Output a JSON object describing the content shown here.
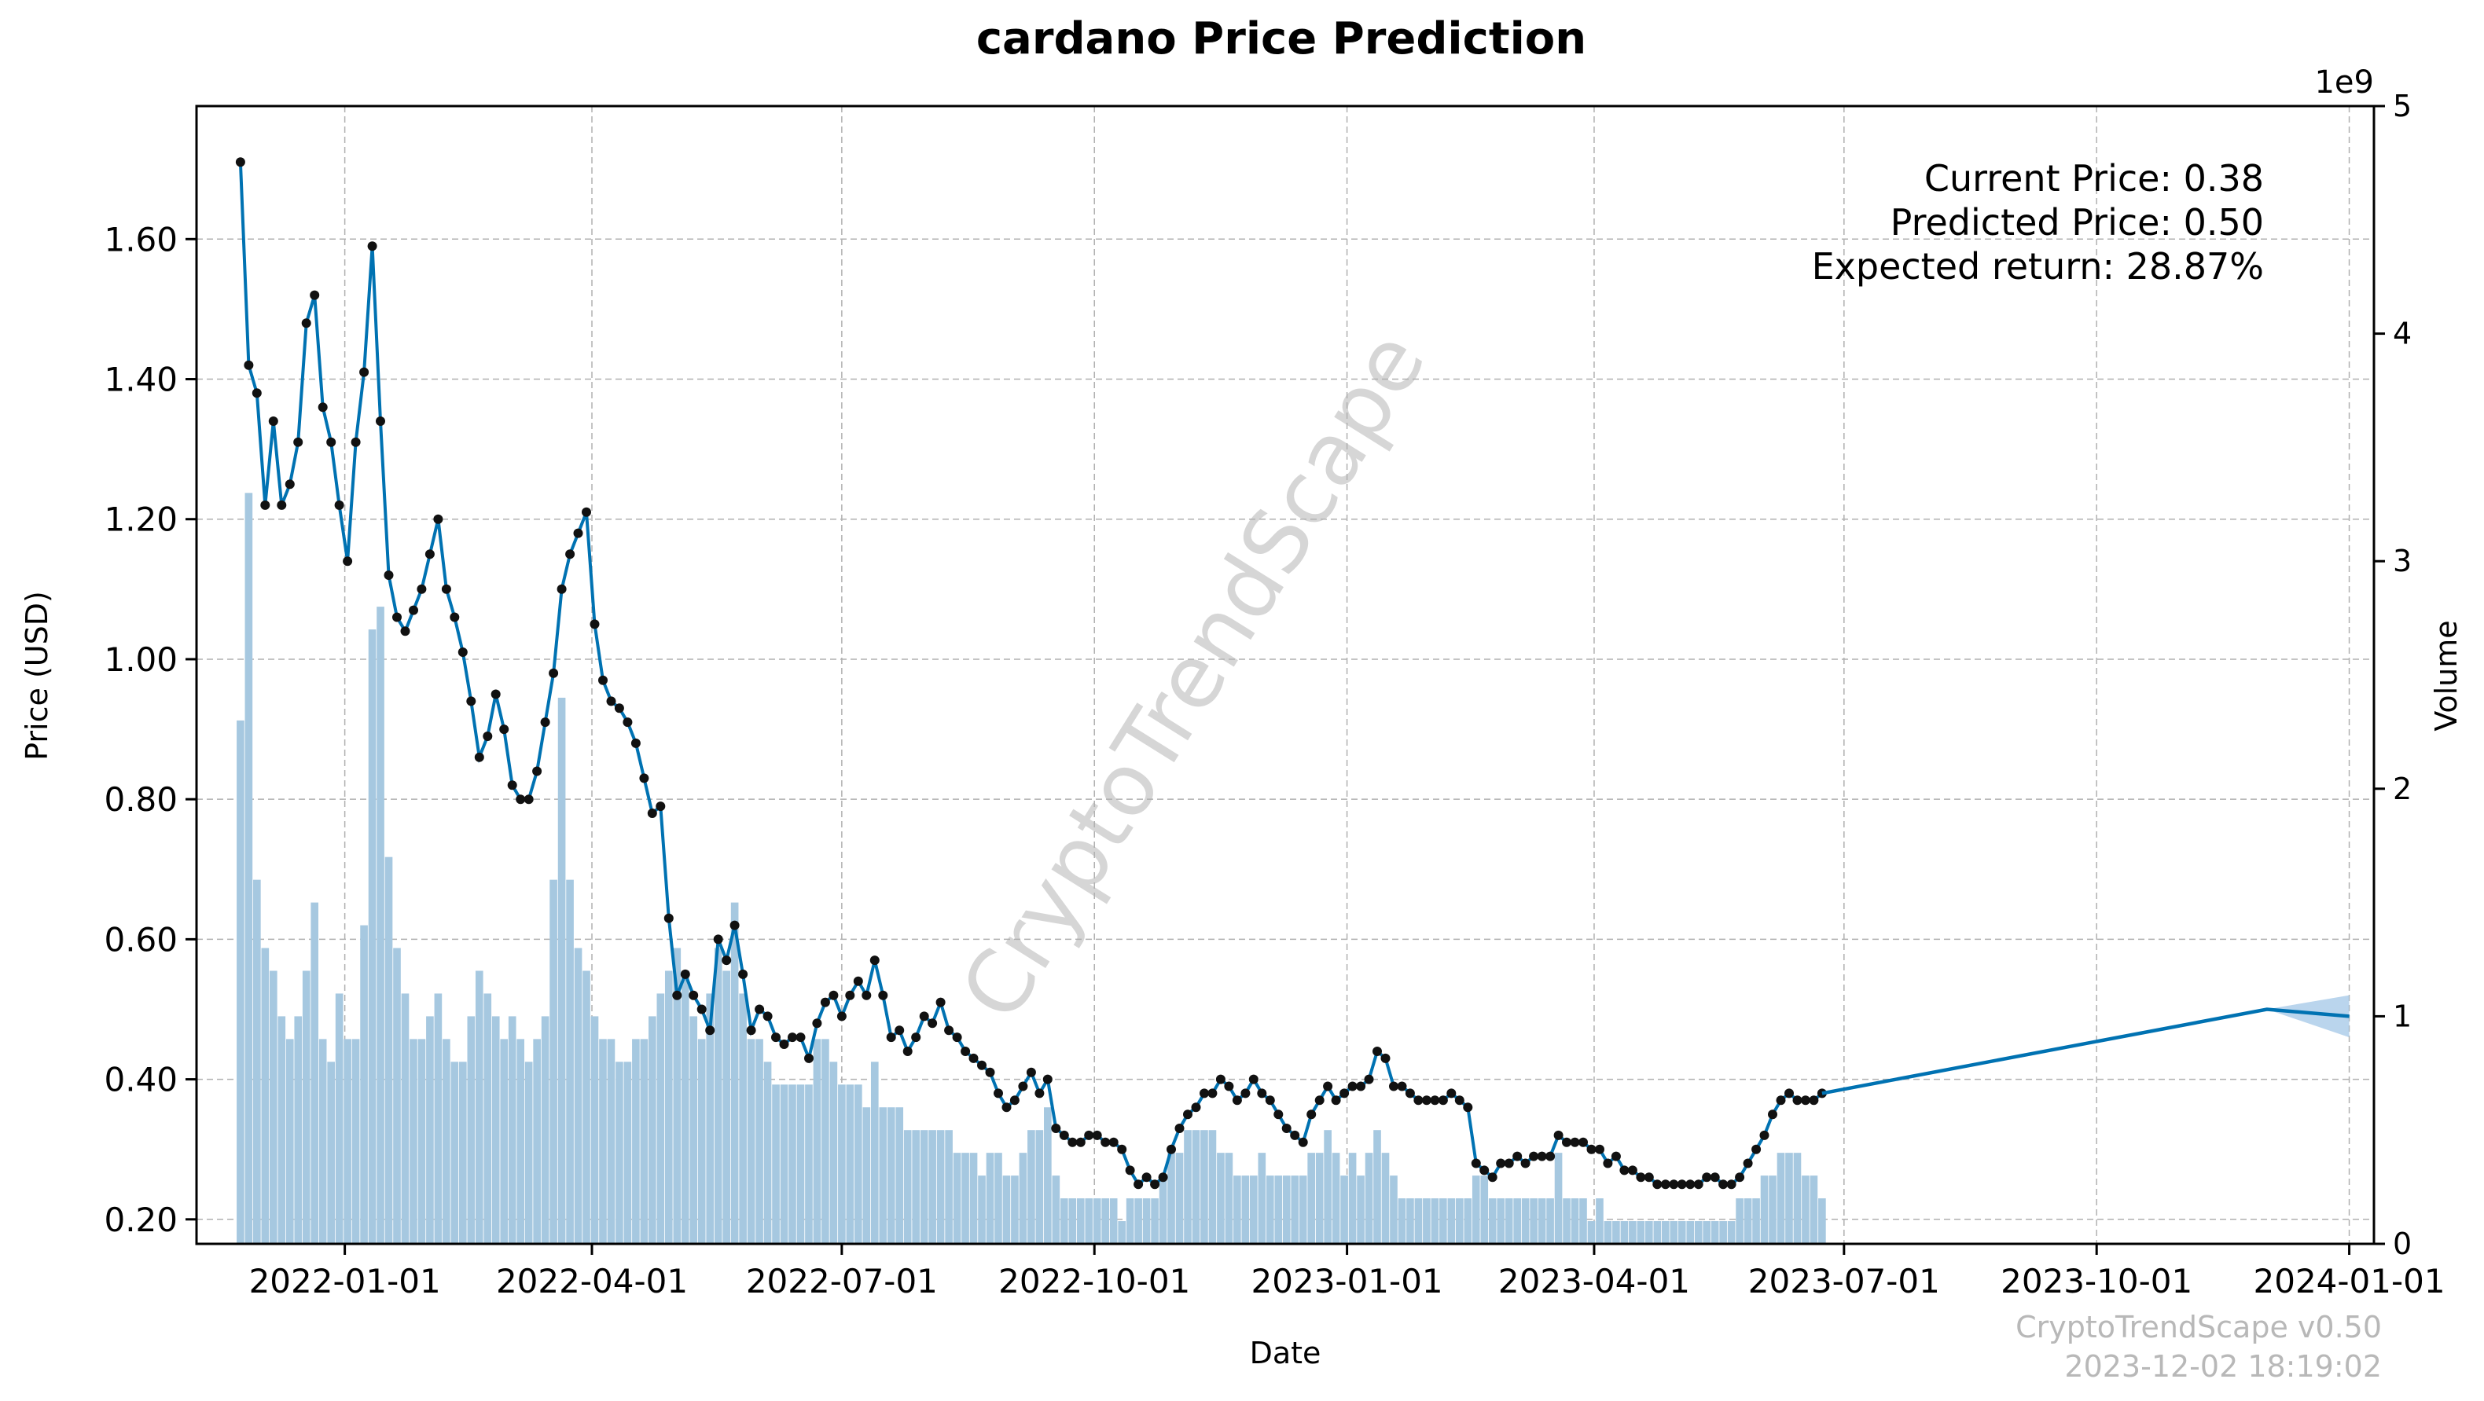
{
  "chart_data": {
    "type": "line",
    "title": "cardano Price Prediction",
    "xlabel": "Date",
    "ylabel": "Price (USD)",
    "y2label": "Volume",
    "y2_offset_label": "1e9",
    "x_range": [
      "2021-11-08",
      "2024-01-10"
    ],
    "ylim": [
      0.165,
      1.79
    ],
    "y2lim": [
      0,
      5
    ],
    "y_ticks": [
      0.2,
      0.4,
      0.6,
      0.8,
      1.0,
      1.2,
      1.4,
      1.6
    ],
    "y_tick_labels": [
      "0.20",
      "0.40",
      "0.60",
      "0.80",
      "1.00",
      "1.20",
      "1.40",
      "1.60"
    ],
    "y2_ticks": [
      0,
      1,
      2,
      3,
      4,
      5
    ],
    "y2_tick_labels": [
      "0",
      "1",
      "2",
      "3",
      "4",
      "5"
    ],
    "x_ticks": [
      "2022-01-01",
      "2022-04-01",
      "2022-07-01",
      "2022-10-01",
      "2023-01-01",
      "2023-04-01",
      "2023-07-01",
      "2023-10-01",
      "2024-01-01"
    ],
    "x_tick_labels": [
      "2022-01-01",
      "2022-04-01",
      "2022-07-01",
      "2022-10-01",
      "2023-01-01",
      "2023-04-01",
      "2023-07-01",
      "2023-10-01",
      "2024-01-01"
    ],
    "grid": true,
    "annotations": [
      "Current Price: 0.38",
      "Predicted Price: 0.50",
      "Expected return: 28.87%"
    ],
    "watermark": "CryptoTrendScape",
    "footer": [
      "CryptoTrendScape v0.50",
      "2023-12-02 18:19:02"
    ],
    "colors": {
      "line": "#0072b2",
      "marker": "#111111",
      "volume": "#a6c8e0",
      "band": "#9dc3e6",
      "grid": "#b0b0b0"
    },
    "series": [
      {
        "name": "Price",
        "start_date": "2021-11-24",
        "step_days": 3,
        "values": [
          1.71,
          1.42,
          1.38,
          1.22,
          1.34,
          1.22,
          1.25,
          1.31,
          1.48,
          1.52,
          1.36,
          1.31,
          1.22,
          1.14,
          1.31,
          1.41,
          1.59,
          1.34,
          1.12,
          1.06,
          1.04,
          1.07,
          1.1,
          1.15,
          1.2,
          1.1,
          1.06,
          1.01,
          0.94,
          0.86,
          0.89,
          0.95,
          0.9,
          0.82,
          0.8,
          0.8,
          0.84,
          0.91,
          0.98,
          1.1,
          1.15,
          1.18,
          1.21,
          1.05,
          0.97,
          0.94,
          0.93,
          0.91,
          0.88,
          0.83,
          0.78,
          0.79,
          0.63,
          0.52,
          0.55,
          0.52,
          0.5,
          0.47,
          0.6,
          0.57,
          0.62,
          0.55,
          0.47,
          0.5,
          0.49,
          0.46,
          0.45,
          0.46,
          0.46,
          0.43,
          0.48,
          0.51,
          0.52,
          0.49,
          0.52,
          0.54,
          0.52,
          0.57,
          0.52,
          0.46,
          0.47,
          0.44,
          0.46,
          0.49,
          0.48,
          0.51,
          0.47,
          0.46,
          0.44,
          0.43,
          0.42,
          0.41,
          0.38,
          0.36,
          0.37,
          0.39,
          0.41,
          0.38,
          0.4,
          0.33,
          0.32,
          0.31,
          0.31,
          0.32,
          0.32,
          0.31,
          0.31,
          0.3,
          0.27,
          0.25,
          0.26,
          0.25,
          0.26,
          0.3,
          0.33,
          0.35,
          0.36,
          0.38,
          0.38,
          0.4,
          0.39,
          0.37,
          0.38,
          0.4,
          0.38,
          0.37,
          0.35,
          0.33,
          0.32,
          0.31,
          0.35,
          0.37,
          0.39,
          0.37,
          0.38,
          0.39,
          0.39,
          0.4,
          0.44,
          0.43,
          0.39,
          0.39,
          0.38,
          0.37,
          0.37,
          0.37,
          0.37,
          0.38,
          0.37,
          0.36,
          0.28,
          0.27,
          0.26,
          0.28,
          0.28,
          0.29,
          0.28,
          0.29,
          0.29,
          0.29,
          0.32,
          0.31,
          0.31,
          0.31,
          0.3,
          0.3,
          0.28,
          0.29,
          0.27,
          0.27,
          0.26,
          0.26,
          0.25,
          0.25,
          0.25,
          0.25,
          0.25,
          0.25,
          0.26,
          0.26,
          0.25,
          0.25,
          0.26,
          0.28,
          0.3,
          0.32,
          0.35,
          0.37,
          0.38,
          0.37,
          0.37,
          0.37,
          0.38
        ]
      },
      {
        "name": "Prediction",
        "dates": [
          "2023-12-02",
          "2024-01-01"
        ],
        "values": [
          0.5,
          0.49
        ]
      }
    ],
    "volume": {
      "name": "Volume",
      "start_date": "2021-11-24",
      "step_days": 3,
      "values": [
        2.3,
        3.3,
        1.6,
        1.3,
        1.2,
        1.0,
        0.9,
        1.0,
        1.2,
        1.5,
        0.9,
        0.8,
        1.1,
        0.9,
        0.9,
        1.4,
        2.7,
        2.8,
        1.7,
        1.3,
        1.1,
        0.9,
        0.9,
        1.0,
        1.1,
        0.9,
        0.8,
        0.8,
        1.0,
        1.2,
        1.1,
        1.0,
        0.9,
        1.0,
        0.9,
        0.8,
        0.9,
        1.0,
        1.6,
        2.4,
        1.6,
        1.3,
        1.2,
        1.0,
        0.9,
        0.9,
        0.8,
        0.8,
        0.9,
        0.9,
        1.0,
        1.1,
        1.2,
        1.3,
        1.2,
        1.0,
        0.9,
        1.1,
        1.3,
        1.2,
        1.5,
        1.1,
        0.9,
        0.9,
        0.8,
        0.7,
        0.7,
        0.7,
        0.7,
        0.7,
        0.9,
        0.9,
        0.8,
        0.7,
        0.7,
        0.7,
        0.6,
        0.8,
        0.6,
        0.6,
        0.6,
        0.5,
        0.5,
        0.5,
        0.5,
        0.5,
        0.5,
        0.4,
        0.4,
        0.4,
        0.3,
        0.4,
        0.4,
        0.3,
        0.3,
        0.4,
        0.5,
        0.5,
        0.6,
        0.3,
        0.2,
        0.2,
        0.2,
        0.2,
        0.2,
        0.2,
        0.2,
        0.1,
        0.2,
        0.2,
        0.2,
        0.2,
        0.3,
        0.4,
        0.4,
        0.5,
        0.5,
        0.5,
        0.5,
        0.4,
        0.4,
        0.3,
        0.3,
        0.3,
        0.4,
        0.3,
        0.3,
        0.3,
        0.3,
        0.3,
        0.4,
        0.4,
        0.5,
        0.4,
        0.3,
        0.4,
        0.3,
        0.4,
        0.5,
        0.4,
        0.3,
        0.2,
        0.2,
        0.2,
        0.2,
        0.2,
        0.2,
        0.2,
        0.2,
        0.2,
        0.3,
        0.3,
        0.2,
        0.2,
        0.2,
        0.2,
        0.2,
        0.2,
        0.2,
        0.2,
        0.4,
        0.2,
        0.2,
        0.2,
        0.1,
        0.2,
        0.1,
        0.1,
        0.1,
        0.1,
        0.1,
        0.1,
        0.1,
        0.1,
        0.1,
        0.1,
        0.1,
        0.1,
        0.1,
        0.1,
        0.1,
        0.1,
        0.2,
        0.2,
        0.2,
        0.3,
        0.3,
        0.4,
        0.4,
        0.4,
        0.3,
        0.3,
        0.2
      ]
    }
  }
}
